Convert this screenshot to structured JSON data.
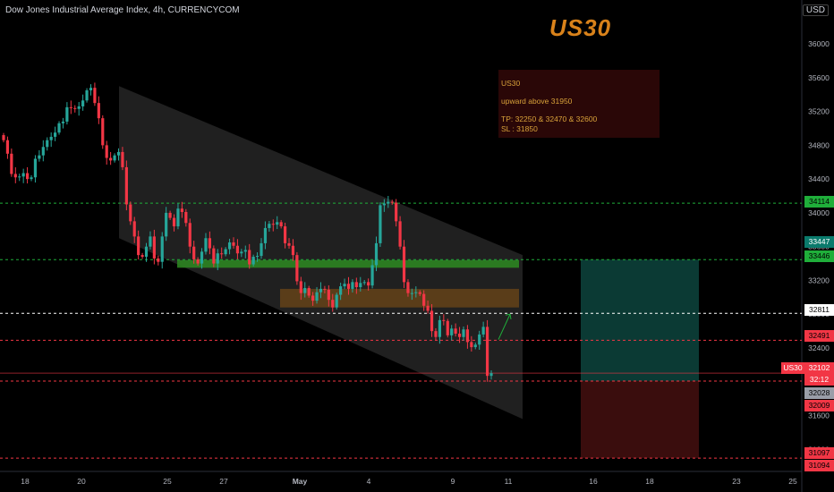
{
  "header": {
    "instrument": "Dow Jones Industrial Average Index, 4h, CURRENCYCOM",
    "currency": "USD"
  },
  "annotation": {
    "title": "US30",
    "note_lines": [
      "US30",
      "upward above 31950",
      "TP: 32250 & 32470 &  32600",
      "SL : 31850"
    ]
  },
  "colors": {
    "background": "#000000",
    "up": "#26a69a",
    "down": "#f23645",
    "title": "#d9821a",
    "note_bg": "#2a0707",
    "note_text": "#d9a23a",
    "support_zone": "#2e8b22",
    "resistance_zone": "#8a5514",
    "target_zone": "#0b3a34",
    "stop_zone": "#3a0d0d"
  },
  "labels": {
    "symbol": "US30",
    "last_price": "32102",
    "countdown": "32:12",
    "green_level": "34114",
    "teal_top": "33447",
    "teal_level": "33446",
    "white_level": "32811",
    "red_level": "32491",
    "grey_level": "32028",
    "red_level2": "32009",
    "red_level3": "31097",
    "red_level4": "31094"
  },
  "chart_data": {
    "type": "candlestick",
    "timeframe": "4h",
    "y_axis_ticks": [
      36000,
      35600,
      35200,
      34800,
      34400,
      34000,
      33600,
      33200,
      32800,
      32400,
      32000,
      31600,
      31200
    ],
    "ylim": [
      30960,
      36350
    ],
    "x_axis_ticks": [
      "18",
      "20",
      "25",
      "27",
      "May",
      "4",
      "9",
      "11",
      "16",
      "18",
      "23",
      "25"
    ],
    "channel": {
      "upper_start": 35500,
      "upper_end": 33500,
      "lower_start": 33700,
      "lower_end": 31560
    },
    "zones": [
      {
        "name": "support",
        "low": 33350,
        "high": 33440
      },
      {
        "name": "resistance",
        "low": 32880,
        "high": 33100
      }
    ],
    "levels": [
      34114,
      33446,
      32811,
      32491,
      32009,
      31097
    ],
    "position": {
      "entry": 32009,
      "target": 33446,
      "stop": 31097
    },
    "closes": [
      34860,
      34700,
      34460,
      34420,
      34430,
      34470,
      34400,
      34420,
      34640,
      34680,
      34780,
      34860,
      34900,
      34950,
      35060,
      35080,
      35250,
      35240,
      35230,
      35260,
      35330,
      35450,
      35480,
      35300,
      35120,
      34800,
      34650,
      34620,
      34680,
      34720,
      34540,
      34100,
      33900,
      33720,
      33500,
      33480,
      33600,
      33720,
      33460,
      33420,
      33720,
      34000,
      33940,
      33840,
      34050,
      34010,
      33880,
      33600,
      33450,
      33400,
      33540,
      33700,
      33580,
      33400,
      33520,
      33510,
      33570,
      33650,
      33610,
      33520,
      33540,
      33560,
      33390,
      33480,
      33490,
      33640,
      33820,
      33870,
      33860,
      33890,
      33840,
      33640,
      33610,
      33500,
      33190,
      33050,
      33110,
      33020,
      32960,
      33060,
      33100,
      33090,
      32970,
      32880,
      33030,
      33130,
      33160,
      33100,
      33180,
      33120,
      33170,
      33180,
      33140,
      33380,
      33640,
      34090,
      34110,
      34130,
      34120,
      33900,
      33600,
      33180,
      33050,
      33050,
      33060,
      33040,
      32900,
      32840,
      32600,
      32530,
      32730,
      32720,
      32550,
      32630,
      32570,
      32530,
      32620,
      32470,
      32410,
      32440,
      32560,
      32650,
      32070,
      32102
    ]
  }
}
